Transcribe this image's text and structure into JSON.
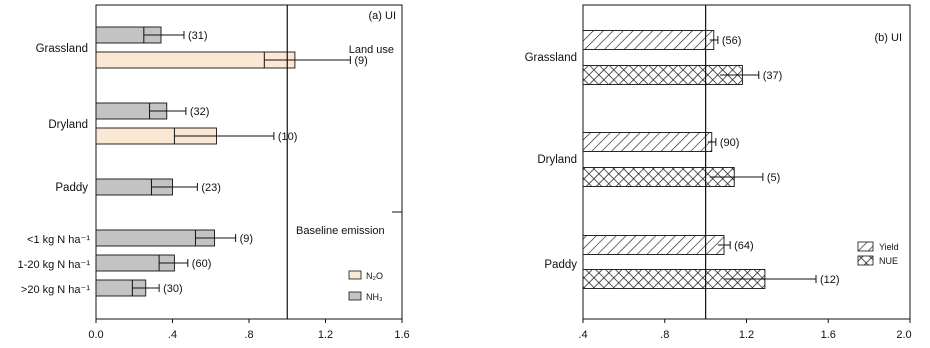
{
  "chart_data": [
    {
      "type": "bar",
      "orientation": "horizontal",
      "panel_label": "(a) UI",
      "annotations": {
        "group_label": "Land use",
        "baseline_label": "Baseline emission"
      },
      "reference_line": 1.0,
      "xlim": [
        0.0,
        1.6
      ],
      "xticks": [
        "0.0",
        ".4",
        ".8",
        "1.2",
        "1.6"
      ],
      "categories": [
        "Grassland",
        "Dryland",
        "Paddy",
        "<1 kg N ha⁻¹",
        "1-20 kg N ha⁻¹",
        ">20 kg N ha⁻¹"
      ],
      "legend": {
        "placement": "bottom-right",
        "entries": [
          {
            "series": "N2O",
            "label": "N₂O"
          },
          {
            "series": "NH3",
            "label": "NH₃"
          }
        ]
      },
      "colors": {
        "N2O": "#fbe8d4",
        "NH3": "#c3c3c3"
      },
      "series": [
        {
          "name": "N2O",
          "points": [
            {
              "category": "Grassland",
              "value": 1.04,
              "inner": 0.88,
              "ci": [
                0.88,
                1.33
              ],
              "n": "(9)"
            },
            {
              "category": "Dryland",
              "value": 0.63,
              "inner": 0.41,
              "ci": [
                0.41,
                0.93
              ],
              "n": "(10)"
            }
          ]
        },
        {
          "name": "NH3",
          "points": [
            {
              "category": "Grassland",
              "value": 0.34,
              "inner": 0.25,
              "ci": [
                0.25,
                0.46
              ],
              "n": "(31)"
            },
            {
              "category": "Dryland",
              "value": 0.37,
              "inner": 0.28,
              "ci": [
                0.28,
                0.47
              ],
              "n": "(32)"
            },
            {
              "category": "Paddy",
              "value": 0.4,
              "inner": 0.29,
              "ci": [
                0.29,
                0.53
              ],
              "n": "(23)"
            },
            {
              "category": "<1 kg N ha⁻¹",
              "value": 0.62,
              "inner": 0.52,
              "ci": [
                0.52,
                0.73
              ],
              "n": "(9)"
            },
            {
              "category": "1-20 kg N ha⁻¹",
              "value": 0.41,
              "inner": 0.33,
              "ci": [
                0.33,
                0.48
              ],
              "n": "(60)"
            },
            {
              "category": ">20 kg N ha⁻¹",
              "value": 0.26,
              "inner": 0.19,
              "ci": [
                0.19,
                0.33
              ],
              "n": "(30)"
            }
          ]
        }
      ]
    },
    {
      "type": "bar",
      "orientation": "horizontal",
      "panel_label": "(b) UI",
      "reference_line": 1.0,
      "xlim": [
        0.4,
        2.0
      ],
      "xticks": [
        ".4",
        ".8",
        "1.2",
        "1.6",
        "2.0"
      ],
      "categories": [
        "Grassland",
        "Dryland",
        "Paddy"
      ],
      "legend": {
        "placement": "bottom-right",
        "entries": [
          {
            "series": "Yield",
            "label": "Yield"
          },
          {
            "series": "NUE",
            "label": "NUE"
          }
        ]
      },
      "series": [
        {
          "name": "Yield",
          "pattern": "diagonal-hatch",
          "points": [
            {
              "category": "Grassland",
              "value": 1.04,
              "ci": [
                1.02,
                1.06
              ],
              "n": "(56)"
            },
            {
              "category": "Dryland",
              "value": 1.03,
              "ci": [
                1.01,
                1.05
              ],
              "n": "(90)"
            },
            {
              "category": "Paddy",
              "value": 1.09,
              "ci": [
                1.06,
                1.12
              ],
              "n": "(64)"
            }
          ]
        },
        {
          "name": "NUE",
          "pattern": "cross-hatch",
          "points": [
            {
              "category": "Grassland",
              "value": 1.18,
              "ci": [
                1.07,
                1.26
              ],
              "n": "(37)"
            },
            {
              "category": "Dryland",
              "value": 1.14,
              "ci": [
                1.02,
                1.28
              ],
              "n": "(5)"
            },
            {
              "category": "Paddy",
              "value": 1.29,
              "ci": [
                1.09,
                1.54
              ],
              "n": "(12)"
            }
          ]
        }
      ]
    }
  ]
}
